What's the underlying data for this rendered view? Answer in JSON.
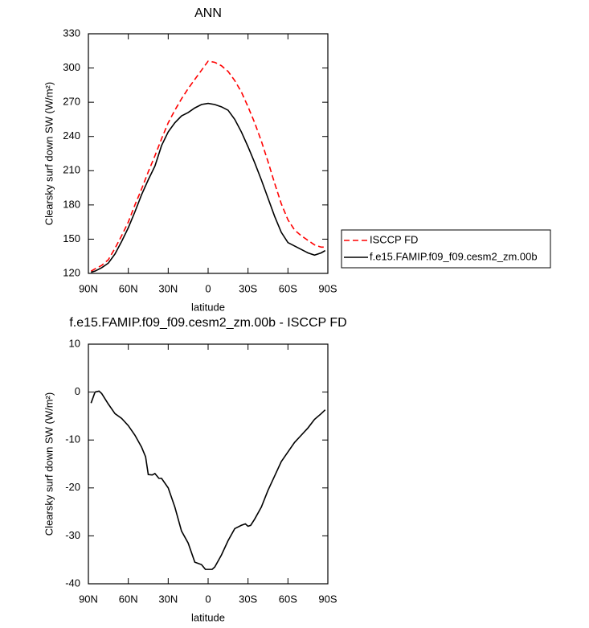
{
  "chart_data": [
    {
      "type": "line",
      "title": "ANN",
      "x_label": "latitude",
      "y_label": "Clearsky surf down SW (W/m²)",
      "x": [
        88,
        85,
        80,
        75,
        70,
        65,
        60,
        55,
        50,
        45,
        40,
        35,
        30,
        25,
        20,
        15,
        10,
        5,
        0,
        -5,
        -10,
        -15,
        -20,
        -25,
        -30,
        -35,
        -40,
        -45,
        -50,
        -55,
        -60,
        -65,
        -70,
        -75,
        -80,
        -85,
        -88
      ],
      "series": [
        {
          "name": "ISCCP FD",
          "color": "#ff0000",
          "line_style": "dashed",
          "values": [
            122,
            124,
            127,
            132,
            142,
            153,
            165,
            180,
            194,
            209,
            223,
            238,
            252,
            263,
            273,
            282,
            290,
            298,
            306,
            305,
            302,
            297,
            289,
            279,
            266,
            252,
            236,
            218,
            199,
            181,
            167,
            158,
            153,
            149,
            145,
            143,
            143
          ]
        },
        {
          "name": "f.e15.FAMIP.f09_f09.cesm2_zm.00b",
          "color": "#000000",
          "line_style": "solid",
          "values": [
            121,
            122,
            125,
            129,
            137,
            148,
            160,
            174,
            189,
            202,
            214,
            232,
            244,
            252,
            258,
            261,
            265,
            268,
            269,
            268,
            266,
            263,
            255,
            244,
            231,
            217,
            202,
            186,
            170,
            156,
            147,
            144,
            141,
            138,
            136,
            138,
            140
          ]
        }
      ],
      "xlim": [
        90,
        -90
      ],
      "xticks": [
        {
          "value": 90,
          "label": "90N"
        },
        {
          "value": 60,
          "label": "60N"
        },
        {
          "value": 30,
          "label": "30N"
        },
        0,
        {
          "value": -30,
          "label": "30S"
        },
        {
          "value": -60,
          "label": "60S"
        },
        {
          "value": -90,
          "label": "90S"
        }
      ],
      "ylim": [
        120,
        330
      ],
      "yticks": [
        120,
        150,
        180,
        210,
        240,
        270,
        300,
        330
      ],
      "grid": false,
      "legend": "right"
    },
    {
      "type": "line",
      "title": "f.e15.FAMIP.f09_f09.cesm2_zm.00b - ISCCP FD",
      "x_label": "latitude",
      "y_label": "Clearsky surf down SW (W/m²)",
      "x": [
        88,
        85,
        82,
        80,
        75,
        70,
        65,
        60,
        55,
        50,
        47,
        45,
        42,
        40,
        37,
        35,
        30,
        25,
        20,
        15,
        10,
        5,
        2,
        0,
        -3,
        -5,
        -10,
        -15,
        -20,
        -25,
        -28,
        -30,
        -32,
        -35,
        -40,
        -45,
        -50,
        -55,
        -60,
        -65,
        -70,
        -75,
        -80,
        -85,
        -88
      ],
      "values": [
        -2.3,
        0,
        0.2,
        -0.3,
        -2.5,
        -4.5,
        -5.5,
        -7,
        -9,
        -11.5,
        -13.5,
        -17.2,
        -17.3,
        -17,
        -18,
        -18,
        -20,
        -24,
        -29,
        -31.5,
        -35.5,
        -36,
        -37,
        -37,
        -37,
        -36.5,
        -34,
        -31,
        -28.5,
        -27.8,
        -27.5,
        -28,
        -27.8,
        -26.5,
        -24,
        -20.5,
        -17.5,
        -14.5,
        -12.5,
        -10.5,
        -9,
        -7.5,
        -5.7,
        -4.5,
        -3.7
      ],
      "color": "#000000",
      "xlim": [
        90,
        -90
      ],
      "xticks": [
        {
          "value": 90,
          "label": "90N"
        },
        {
          "value": 60,
          "label": "60N"
        },
        {
          "value": 30,
          "label": "30N"
        },
        0,
        {
          "value": -30,
          "label": "30S"
        },
        {
          "value": -60,
          "label": "60S"
        },
        {
          "value": -90,
          "label": "90S"
        }
      ],
      "ylim": [
        -40,
        10
      ],
      "yticks": [
        -40,
        -30,
        -20,
        -10,
        0,
        10
      ],
      "grid": false
    }
  ]
}
